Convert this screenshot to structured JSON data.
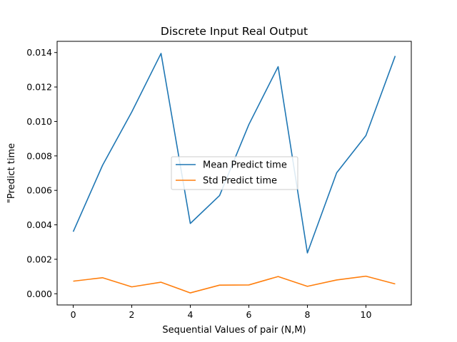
{
  "chart_data": {
    "type": "line",
    "title": "Discrete Input Real Output",
    "xlabel": "Sequential Values of pair (N,M)",
    "ylabel": "\"Predict time",
    "x": [
      0,
      1,
      2,
      3,
      4,
      5,
      6,
      7,
      8,
      9,
      10,
      11
    ],
    "xlim": [
      -0.55,
      11.55
    ],
    "ylim": [
      -0.00065,
      0.01465
    ],
    "xticks": [
      0,
      2,
      4,
      6,
      8,
      10
    ],
    "xtick_labels": [
      "0",
      "2",
      "4",
      "6",
      "8",
      "10"
    ],
    "yticks": [
      0.0,
      0.002,
      0.004,
      0.006,
      0.008,
      0.01,
      0.012,
      0.014
    ],
    "ytick_labels": [
      "0.000",
      "0.002",
      "0.004",
      "0.006",
      "0.008",
      "0.010",
      "0.012",
      "0.014"
    ],
    "grid": false,
    "legend_position": "center",
    "series": [
      {
        "name": "Mean Predict time",
        "color": "#1f77b4",
        "values": [
          0.0036,
          0.00745,
          0.01055,
          0.01395,
          0.00408,
          0.0057,
          0.00982,
          0.01318,
          0.00237,
          0.00702,
          0.00918,
          0.0138
        ]
      },
      {
        "name": "Std Predict time",
        "color": "#ff7f0e",
        "values": [
          0.00073,
          0.00093,
          0.0004,
          0.00067,
          5e-05,
          0.0005,
          0.00051,
          0.001,
          0.00043,
          0.0008,
          0.00102,
          0.00057
        ]
      }
    ]
  }
}
